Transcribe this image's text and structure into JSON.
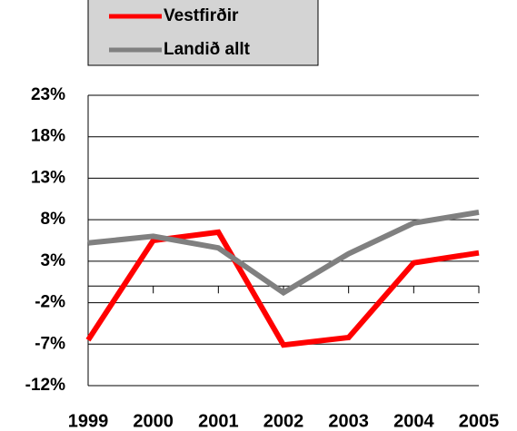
{
  "chart_data": {
    "type": "line",
    "categories": [
      "1999",
      "2000",
      "2001",
      "2002",
      "2003",
      "2004",
      "2005"
    ],
    "series": [
      {
        "name": "Vestfirðir",
        "color": "#ff0000",
        "values": [
          -6.5,
          5.5,
          6.5,
          -7.1,
          -6.2,
          2.8,
          4.0
        ]
      },
      {
        "name": "Landið allt",
        "color": "#808080",
        "values": [
          5.2,
          6.0,
          4.6,
          -0.8,
          3.9,
          7.6,
          8.9
        ]
      }
    ],
    "ylim": [
      -12,
      23
    ],
    "yticks": [
      {
        "value": -12,
        "label": "-12%"
      },
      {
        "value": -7,
        "label": "-7%"
      },
      {
        "value": -2,
        "label": "-2%"
      },
      {
        "value": 3,
        "label": "3%"
      },
      {
        "value": 8,
        "label": "8%"
      },
      {
        "value": 13,
        "label": "13%"
      },
      {
        "value": 18,
        "label": "18%"
      },
      {
        "value": 23,
        "label": "23%"
      }
    ],
    "grid": true
  }
}
